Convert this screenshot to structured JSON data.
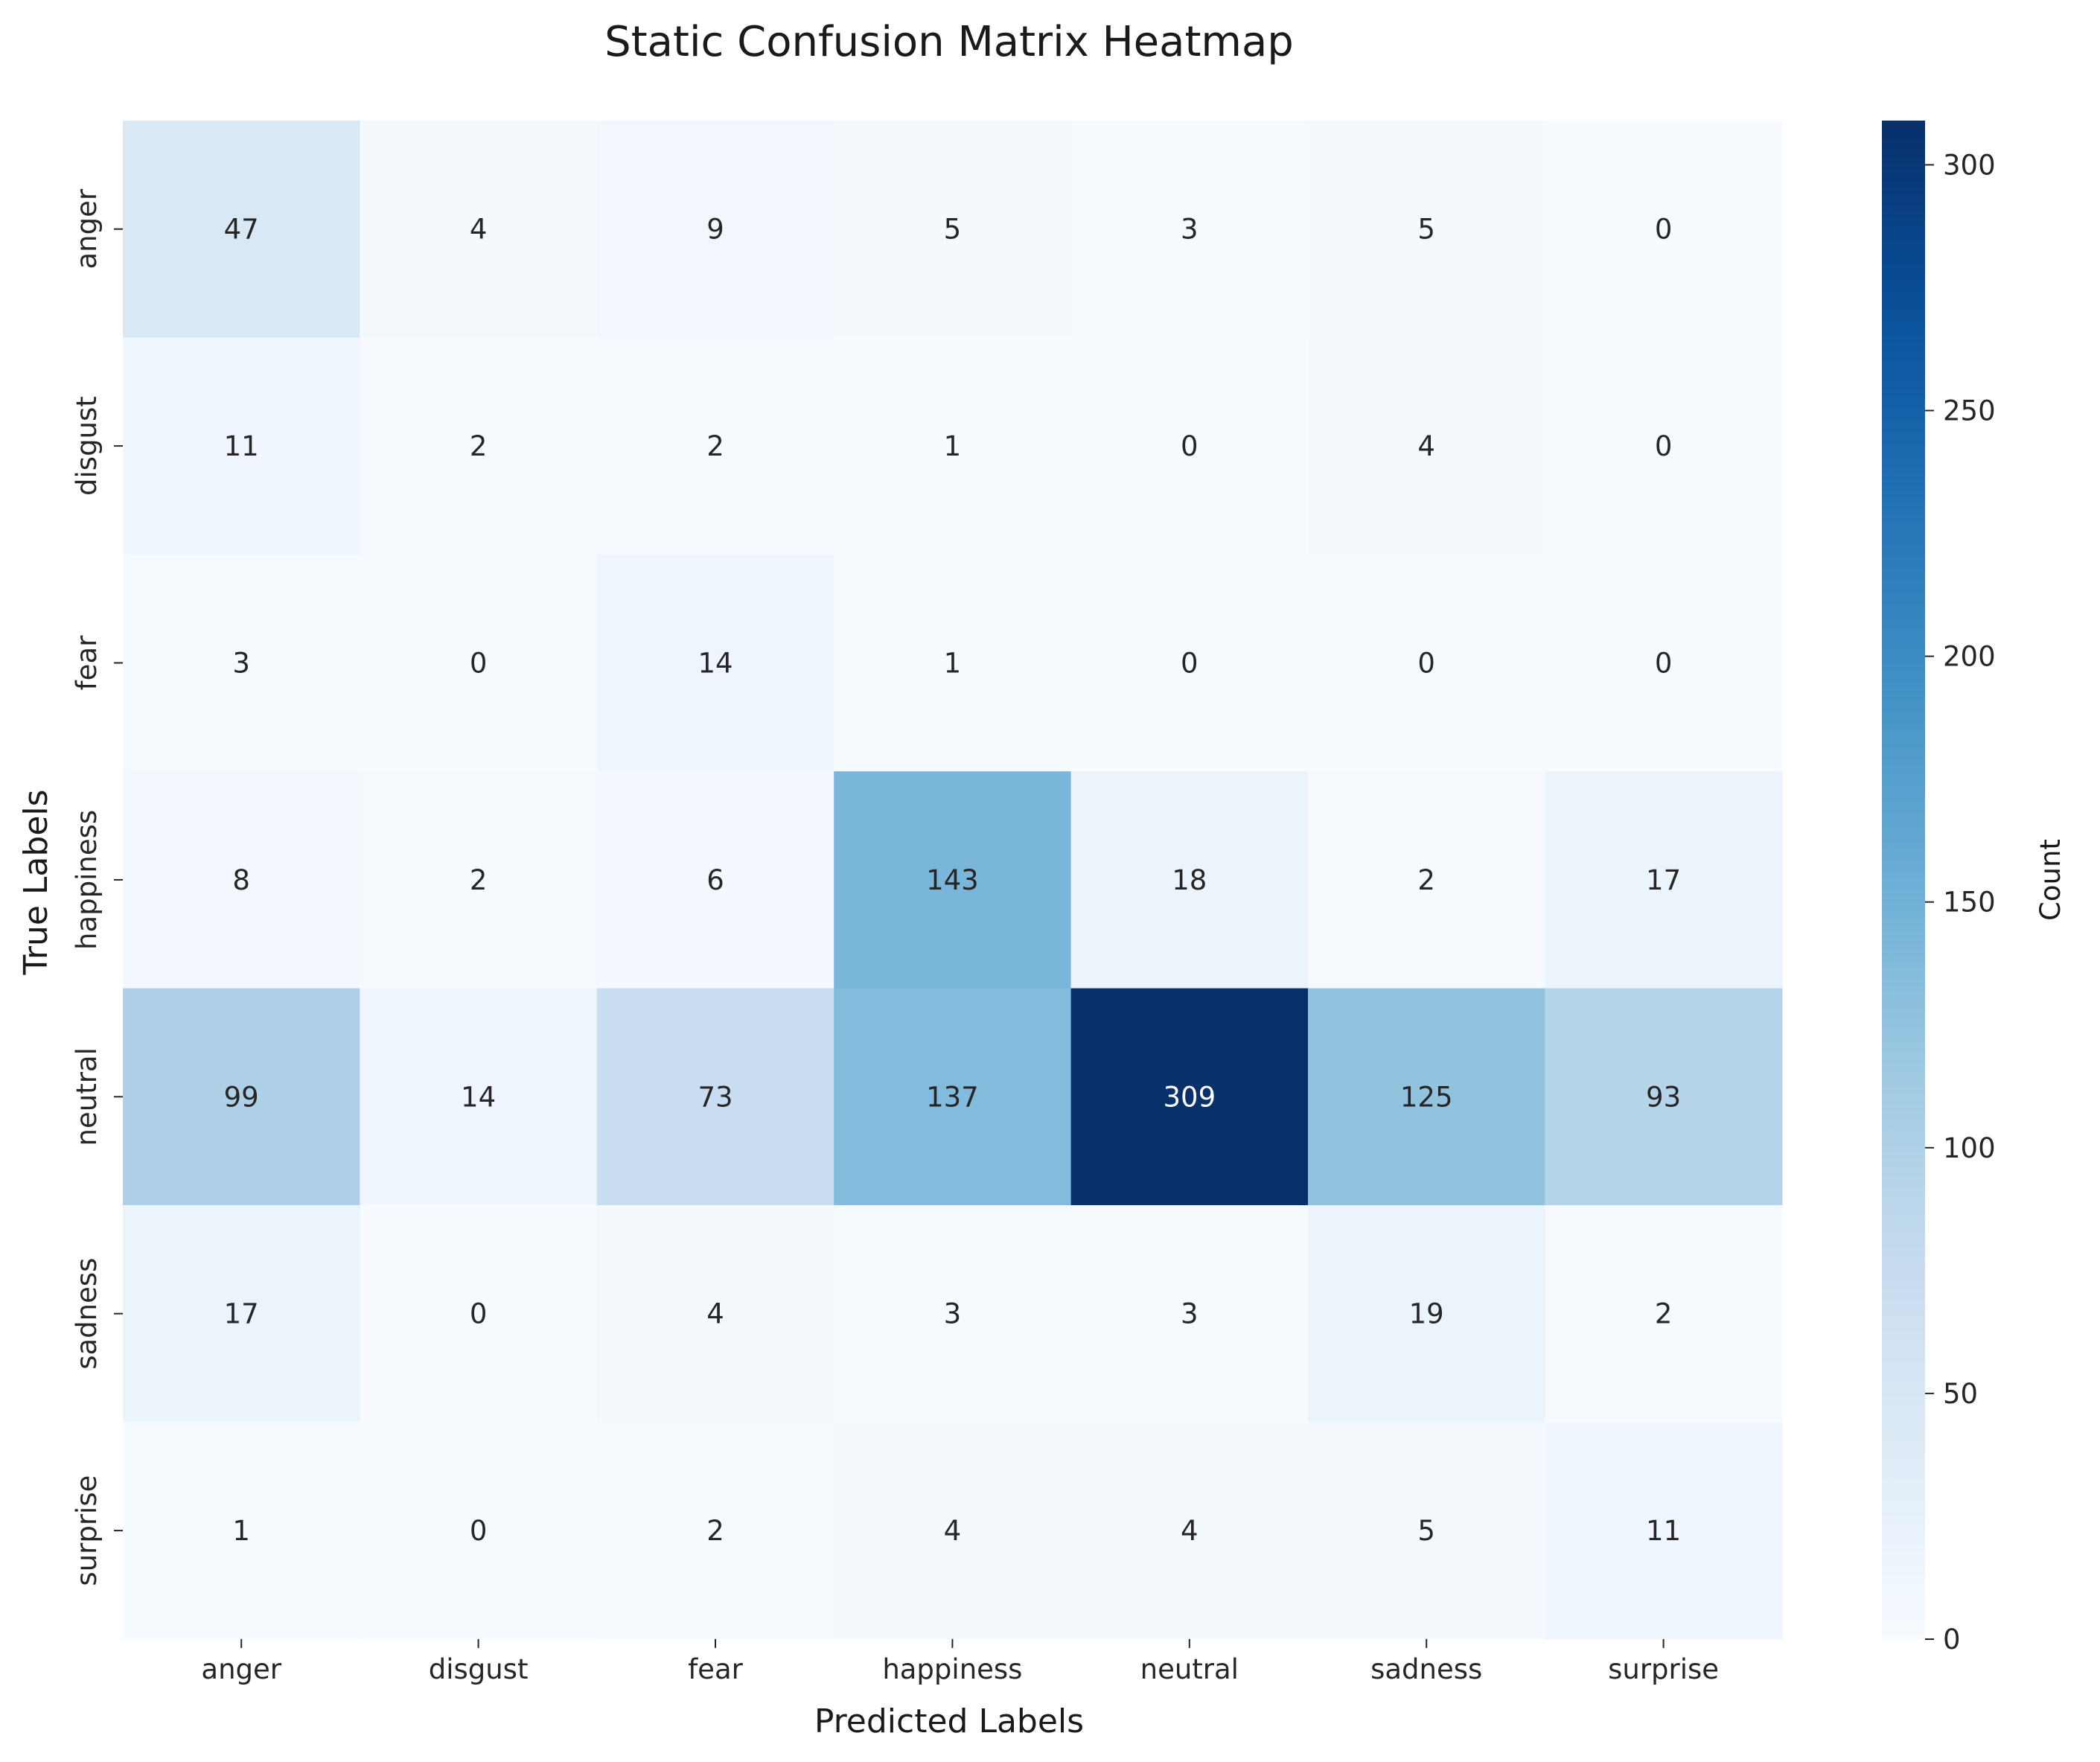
{
  "chart_data": {
    "type": "heatmap",
    "title": "Static Confusion Matrix Heatmap",
    "xlabel": "Predicted Labels",
    "ylabel": "True Labels",
    "x_categories": [
      "anger",
      "disgust",
      "fear",
      "happiness",
      "neutral",
      "sadness",
      "surprise"
    ],
    "y_categories": [
      "anger",
      "disgust",
      "fear",
      "happiness",
      "neutral",
      "sadness",
      "surprise"
    ],
    "values": [
      [
        47,
        4,
        9,
        5,
        3,
        5,
        0
      ],
      [
        11,
        2,
        2,
        1,
        0,
        4,
        0
      ],
      [
        3,
        0,
        14,
        1,
        0,
        0,
        0
      ],
      [
        8,
        2,
        6,
        143,
        18,
        2,
        17
      ],
      [
        99,
        14,
        73,
        137,
        309,
        125,
        93
      ],
      [
        17,
        0,
        4,
        3,
        3,
        19,
        2
      ],
      [
        1,
        0,
        2,
        4,
        4,
        5,
        11
      ]
    ],
    "colorbar": {
      "label": "Count",
      "min": 0,
      "max": 309,
      "ticks": [
        0,
        50,
        100,
        150,
        200,
        250,
        300
      ],
      "colormap": "Blues"
    },
    "annotations": true,
    "grid": false
  }
}
